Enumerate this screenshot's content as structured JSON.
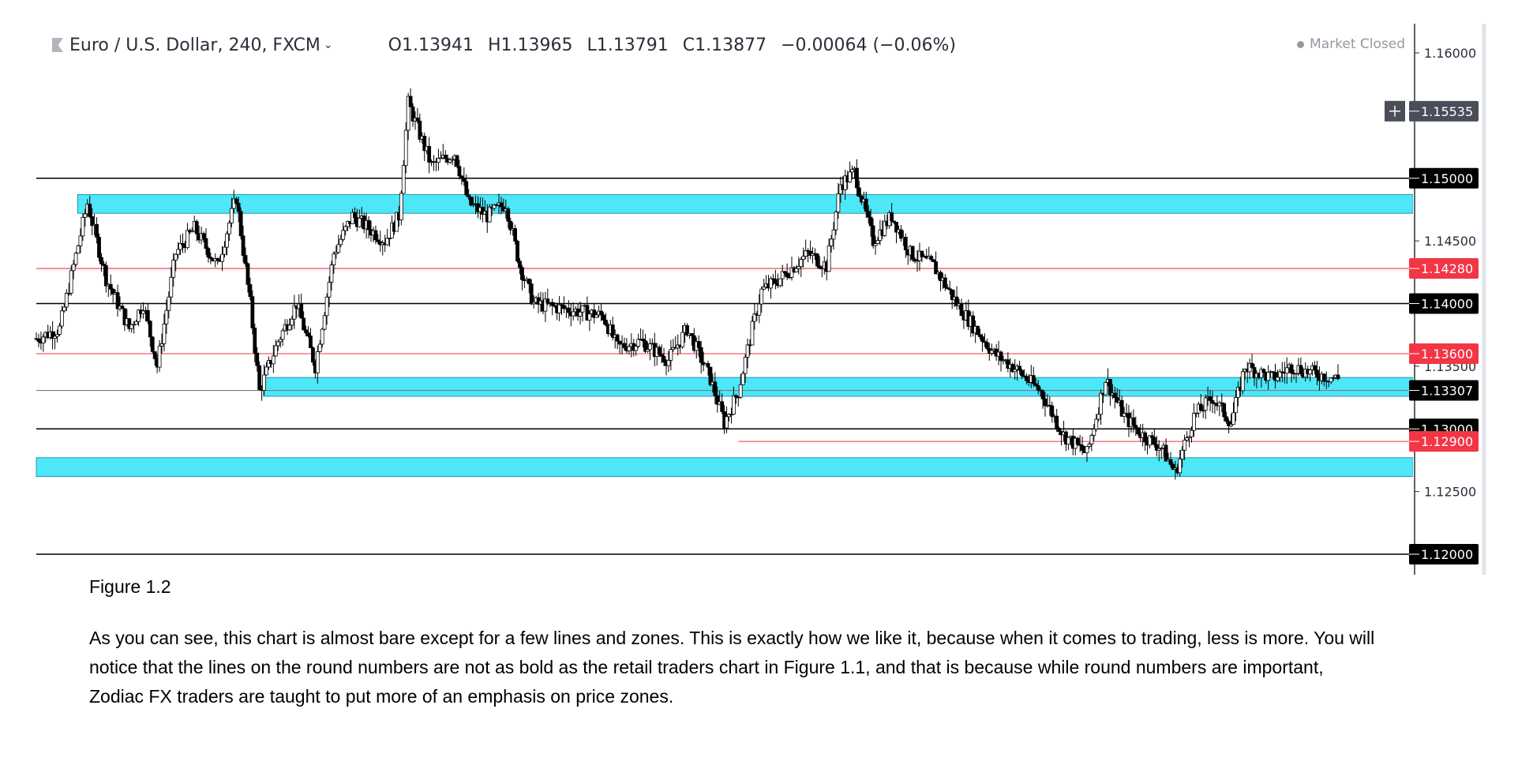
{
  "header": {
    "symbol": "Euro / U.S. Dollar, 240, FXCM",
    "open_label": "O",
    "open": "1.13941",
    "high_label": "H",
    "high": "1.13965",
    "low_label": "L",
    "low": "1.13791",
    "close_label": "C",
    "close": "1.13877",
    "change": "−0.00064 (−0.06%)"
  },
  "market_status": "Market Closed",
  "figure_label": "Figure 1.2",
  "paragraph_lines": [
    "As you can see, this chart is almost bare except for a few lines and zones. This is exactly how we like it, because when it comes to trading, less is more. You will",
    "notice that the lines on the round numbers are not as bold as the retail traders chart in Figure 1.1, and that is because while round numbers are important,",
    "Zodiac FX traders are taught to put more of an emphasis on price zones."
  ],
  "chart_data": {
    "type": "candlestick",
    "title": "",
    "ylim": [
      1.1175,
      1.1625
    ],
    "y_ticks": [
      "1.16000",
      "1.14500",
      "1.13500",
      "1.12500"
    ],
    "price_scale_labels": [
      {
        "value": 1.15535,
        "text": "1.15535",
        "kind": "crosshair"
      },
      {
        "value": 1.15,
        "text": "1.15000",
        "kind": "round"
      },
      {
        "value": 1.1428,
        "text": "1.14280",
        "kind": "level"
      },
      {
        "value": 1.14,
        "text": "1.14000",
        "kind": "round"
      },
      {
        "value": 1.136,
        "text": "1.13600",
        "kind": "level"
      },
      {
        "value": 1.13307,
        "text": "1.13307",
        "kind": "round"
      },
      {
        "value": 1.13,
        "text": "1.13000",
        "kind": "round"
      },
      {
        "value": 1.129,
        "text": "1.12900",
        "kind": "level"
      },
      {
        "value": 1.12,
        "text": "1.12000",
        "kind": "round"
      }
    ],
    "horizontal_lines": [
      {
        "value": 1.15,
        "color": "#000000",
        "start": 0.0
      },
      {
        "value": 1.1428,
        "color": "#f23645",
        "start": 0.0
      },
      {
        "value": 1.14,
        "color": "#000000",
        "start": 0.0
      },
      {
        "value": 1.136,
        "color": "#f23645",
        "start": 0.0
      },
      {
        "value": 1.13307,
        "color": "#787b86",
        "start": 0.0
      },
      {
        "value": 1.13,
        "color": "#000000",
        "start": 0.0
      },
      {
        "value": 1.129,
        "color": "#f23645",
        "start": 0.51
      },
      {
        "value": 1.12,
        "color": "#000000",
        "start": 0.0
      }
    ],
    "zones": [
      {
        "from": 1.1472,
        "to": 1.1487,
        "start": 0.03
      },
      {
        "from": 1.1326,
        "to": 1.1341,
        "start": 0.165
      },
      {
        "from": 1.1262,
        "to": 1.1277,
        "start": 0.0
      }
    ],
    "path_keyframes": [
      [
        0,
        1.1372
      ],
      [
        10,
        1.138
      ],
      [
        22,
        1.148
      ],
      [
        30,
        1.142
      ],
      [
        40,
        1.138
      ],
      [
        46,
        1.14
      ],
      [
        52,
        1.135
      ],
      [
        60,
        1.144
      ],
      [
        68,
        1.146
      ],
      [
        78,
        1.143
      ],
      [
        86,
        1.1485
      ],
      [
        92,
        1.14
      ],
      [
        96,
        1.133
      ],
      [
        104,
        1.137
      ],
      [
        112,
        1.14
      ],
      [
        120,
        1.135
      ],
      [
        128,
        1.144
      ],
      [
        136,
        1.147
      ],
      [
        150,
        1.145
      ],
      [
        156,
        1.147
      ],
      [
        160,
        1.156
      ],
      [
        164,
        1.154
      ],
      [
        170,
        1.151
      ],
      [
        180,
        1.152
      ],
      [
        186,
        1.148
      ],
      [
        194,
        1.147
      ],
      [
        202,
        1.148
      ],
      [
        208,
        1.143
      ],
      [
        214,
        1.14
      ],
      [
        230,
        1.1395
      ],
      [
        244,
        1.139
      ],
      [
        250,
        1.1365
      ],
      [
        260,
        1.137
      ],
      [
        272,
        1.1355
      ],
      [
        280,
        1.138
      ],
      [
        290,
        1.134
      ],
      [
        296,
        1.1305
      ],
      [
        302,
        1.133
      ],
      [
        308,
        1.138
      ],
      [
        312,
        1.141
      ],
      [
        320,
        1.142
      ],
      [
        332,
        1.144
      ],
      [
        340,
        1.143
      ],
      [
        346,
        1.1495
      ],
      [
        352,
        1.1505
      ],
      [
        360,
        1.145
      ],
      [
        368,
        1.147
      ],
      [
        376,
        1.144
      ],
      [
        386,
        1.143
      ],
      [
        396,
        1.14
      ],
      [
        404,
        1.138
      ],
      [
        412,
        1.136
      ],
      [
        420,
        1.135
      ],
      [
        432,
        1.133
      ],
      [
        442,
        1.1295
      ],
      [
        452,
        1.128
      ],
      [
        460,
        1.134
      ],
      [
        468,
        1.131
      ],
      [
        476,
        1.1295
      ],
      [
        484,
        1.1285
      ],
      [
        490,
        1.1265
      ],
      [
        498,
        1.131
      ],
      [
        506,
        1.1325
      ],
      [
        514,
        1.1305
      ],
      [
        520,
        1.135
      ],
      [
        532,
        1.134
      ],
      [
        540,
        1.135
      ],
      [
        548,
        1.1345
      ],
      [
        560,
        1.134
      ]
    ]
  }
}
